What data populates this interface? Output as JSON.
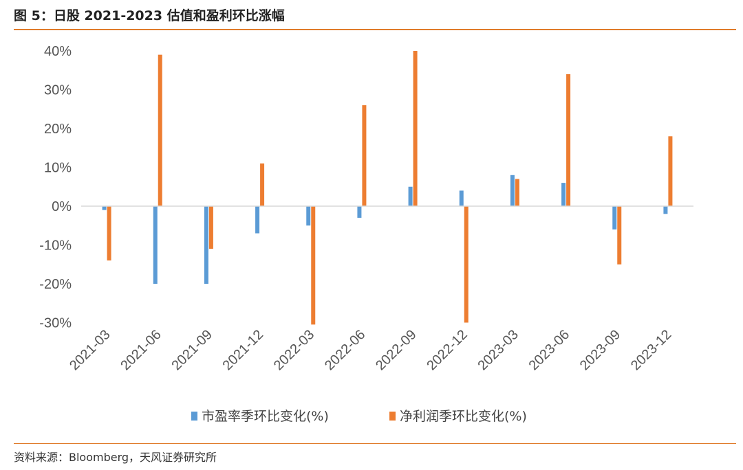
{
  "title": "图 5：日股 2021-2023 估值和盈利环比涨幅",
  "source": "资料来源：Bloomberg，天风证券研究所",
  "colors": {
    "accent": "#e07b2a",
    "series_pe": "#5b9bd5",
    "series_profit": "#ed7d31"
  },
  "chart_data": {
    "type": "bar",
    "categories": [
      "2021-03",
      "2021-06",
      "2021-09",
      "2021-12",
      "2022-03",
      "2022-06",
      "2022-09",
      "2022-12",
      "2023-03",
      "2023-06",
      "2023-09",
      "2023-12"
    ],
    "series": [
      {
        "name": "市盈率季环比变化(%)",
        "values": [
          -1,
          -20,
          -20,
          -7,
          -5,
          -3,
          5,
          4,
          8,
          6,
          -6,
          -2
        ]
      },
      {
        "name": "净利润季环比变化(%)",
        "values": [
          -14,
          39,
          -11,
          11,
          -30.5,
          26,
          40,
          -30,
          7,
          34,
          -15,
          18
        ]
      }
    ],
    "ylim": [
      -30,
      40
    ],
    "yticks": [
      40,
      30,
      20,
      10,
      0,
      -10,
      -20,
      -30
    ],
    "ytick_labels": [
      "40%",
      "30%",
      "20%",
      "10%",
      "0%",
      "-10%",
      "-20%",
      "-30%"
    ],
    "legend": "bottom",
    "grid": false
  }
}
